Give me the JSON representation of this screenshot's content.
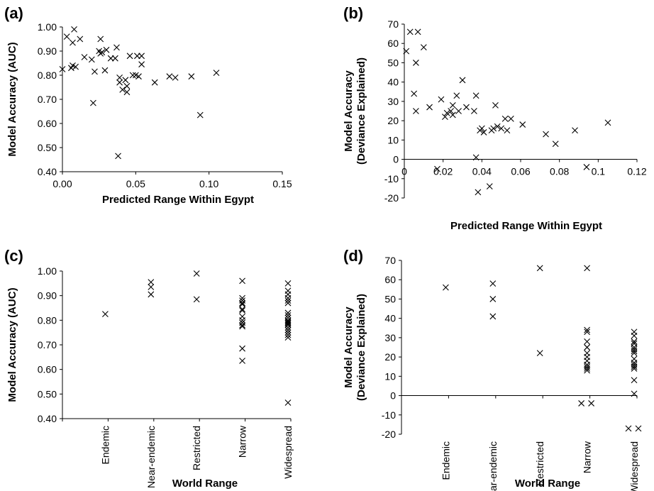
{
  "chart_data": [
    {
      "panel": "(a)",
      "type": "scatter",
      "xlabel": "Predicted Range Within Egypt",
      "ylabel": "Model Accuracy (AUC)",
      "xlim": [
        0,
        0.15
      ],
      "ylim": [
        0.4,
        1.0
      ],
      "xticks": [
        "0.00",
        "0.05",
        "0.10",
        "0.15"
      ],
      "yticks": [
        "1.00",
        "0.90",
        "0.80",
        "0.70",
        "0.60",
        "0.50",
        "0.40"
      ],
      "points": [
        [
          0.0,
          0.825
        ],
        [
          0.003,
          0.96
        ],
        [
          0.006,
          0.83
        ],
        [
          0.007,
          0.84
        ],
        [
          0.007,
          0.935
        ],
        [
          0.008,
          0.99
        ],
        [
          0.009,
          0.835
        ],
        [
          0.012,
          0.95
        ],
        [
          0.015,
          0.875
        ],
        [
          0.02,
          0.865
        ],
        [
          0.021,
          0.685
        ],
        [
          0.022,
          0.815
        ],
        [
          0.025,
          0.9
        ],
        [
          0.026,
          0.95
        ],
        [
          0.026,
          0.89
        ],
        [
          0.027,
          0.895
        ],
        [
          0.029,
          0.82
        ],
        [
          0.03,
          0.905
        ],
        [
          0.033,
          0.87
        ],
        [
          0.036,
          0.87
        ],
        [
          0.037,
          0.915
        ],
        [
          0.038,
          0.465
        ],
        [
          0.039,
          0.79
        ],
        [
          0.039,
          0.77
        ],
        [
          0.041,
          0.74
        ],
        [
          0.043,
          0.78
        ],
        [
          0.044,
          0.73
        ],
        [
          0.044,
          0.755
        ],
        [
          0.046,
          0.88
        ],
        [
          0.048,
          0.8
        ],
        [
          0.05,
          0.8
        ],
        [
          0.051,
          0.88
        ],
        [
          0.052,
          0.795
        ],
        [
          0.054,
          0.845
        ],
        [
          0.054,
          0.88
        ],
        [
          0.063,
          0.77
        ],
        [
          0.073,
          0.795
        ],
        [
          0.077,
          0.79
        ],
        [
          0.088,
          0.795
        ],
        [
          0.094,
          0.635
        ],
        [
          0.105,
          0.81
        ]
      ]
    },
    {
      "panel": "(b)",
      "type": "scatter",
      "xlabel": "Predicted Range Within Egypt",
      "ylabel": "Model Accuracy (Deviance Explained)",
      "xlim": [
        0,
        0.12
      ],
      "ylim": [
        -20,
        70
      ],
      "xticks": [
        "0",
        "0.02",
        "0.04",
        "0.06",
        "0.08",
        "0.1",
        "0.12"
      ],
      "yticks": [
        "70",
        "60",
        "50",
        "40",
        "30",
        "20",
        "10",
        "0",
        "-10",
        "-20"
      ],
      "points": [
        [
          0.001,
          56
        ],
        [
          0.003,
          66
        ],
        [
          0.005,
          34
        ],
        [
          0.006,
          50
        ],
        [
          0.006,
          25
        ],
        [
          0.007,
          66
        ],
        [
          0.01,
          58
        ],
        [
          0.013,
          27
        ],
        [
          0.017,
          -5
        ],
        [
          0.019,
          31
        ],
        [
          0.021,
          22
        ],
        [
          0.022,
          24
        ],
        [
          0.024,
          25
        ],
        [
          0.025,
          28
        ],
        [
          0.025,
          23
        ],
        [
          0.027,
          33
        ],
        [
          0.028,
          25
        ],
        [
          0.03,
          41
        ],
        [
          0.032,
          27
        ],
        [
          0.036,
          25
        ],
        [
          0.037,
          33
        ],
        [
          0.037,
          1
        ],
        [
          0.038,
          -17
        ],
        [
          0.039,
          15
        ],
        [
          0.04,
          16
        ],
        [
          0.041,
          14
        ],
        [
          0.044,
          -14
        ],
        [
          0.045,
          15
        ],
        [
          0.046,
          16
        ],
        [
          0.047,
          28
        ],
        [
          0.048,
          17
        ],
        [
          0.05,
          16
        ],
        [
          0.052,
          21
        ],
        [
          0.053,
          15
        ],
        [
          0.055,
          21
        ],
        [
          0.061,
          18
        ],
        [
          0.073,
          13
        ],
        [
          0.078,
          8
        ],
        [
          0.088,
          15
        ],
        [
          0.094,
          -4
        ],
        [
          0.105,
          19
        ]
      ]
    },
    {
      "panel": "(c)",
      "type": "scatter",
      "xlabel": "World Range",
      "ylabel": "Model Accuracy (AUC)",
      "ylim": [
        0.4,
        1.0
      ],
      "yticks": [
        "1.00",
        "0.90",
        "0.80",
        "0.70",
        "0.60",
        "0.50",
        "0.40"
      ],
      "categories": [
        "Endemic",
        "Near-endemic",
        "Restricted",
        "Narrow",
        "Widespread"
      ],
      "values": [
        [
          0.825
        ],
        [
          0.955,
          0.935,
          0.905
        ],
        [
          0.99,
          0.885
        ],
        [
          0.96,
          0.89,
          0.88,
          0.87,
          0.865,
          0.845,
          0.84,
          0.815,
          0.8,
          0.79,
          0.78,
          0.775,
          0.685,
          0.635
        ],
        [
          0.95,
          0.92,
          0.905,
          0.89,
          0.88,
          0.87,
          0.83,
          0.82,
          0.81,
          0.8,
          0.795,
          0.79,
          0.785,
          0.78,
          0.77,
          0.76,
          0.75,
          0.74,
          0.73,
          0.465
        ]
      ]
    },
    {
      "panel": "(d)",
      "type": "scatter",
      "xlabel": "World Range",
      "ylabel": "Model Accuracy (Deviance Explained)",
      "ylim": [
        -20,
        70
      ],
      "yticks": [
        "70",
        "60",
        "50",
        "40",
        "30",
        "20",
        "10",
        "0",
        "-10",
        "-20"
      ],
      "categories": [
        "Endemic",
        "Near-endemic",
        "Restricted",
        "Narrow",
        "Widespread"
      ],
      "values": [
        [
          56
        ],
        [
          58,
          50,
          41
        ],
        [
          66,
          22
        ],
        [
          66,
          34,
          33,
          28,
          25,
          25,
          22,
          20,
          18,
          16,
          15,
          14,
          13
        ],
        [
          33,
          31,
          28,
          28,
          27,
          25,
          24,
          23,
          22,
          19,
          17,
          16,
          15,
          15,
          14,
          8,
          1
        ]
      ],
      "offset_pairs": [
        {
          "category": "Narrow",
          "value": -4
        },
        {
          "category": "Widespread",
          "value": -17
        }
      ]
    }
  ]
}
